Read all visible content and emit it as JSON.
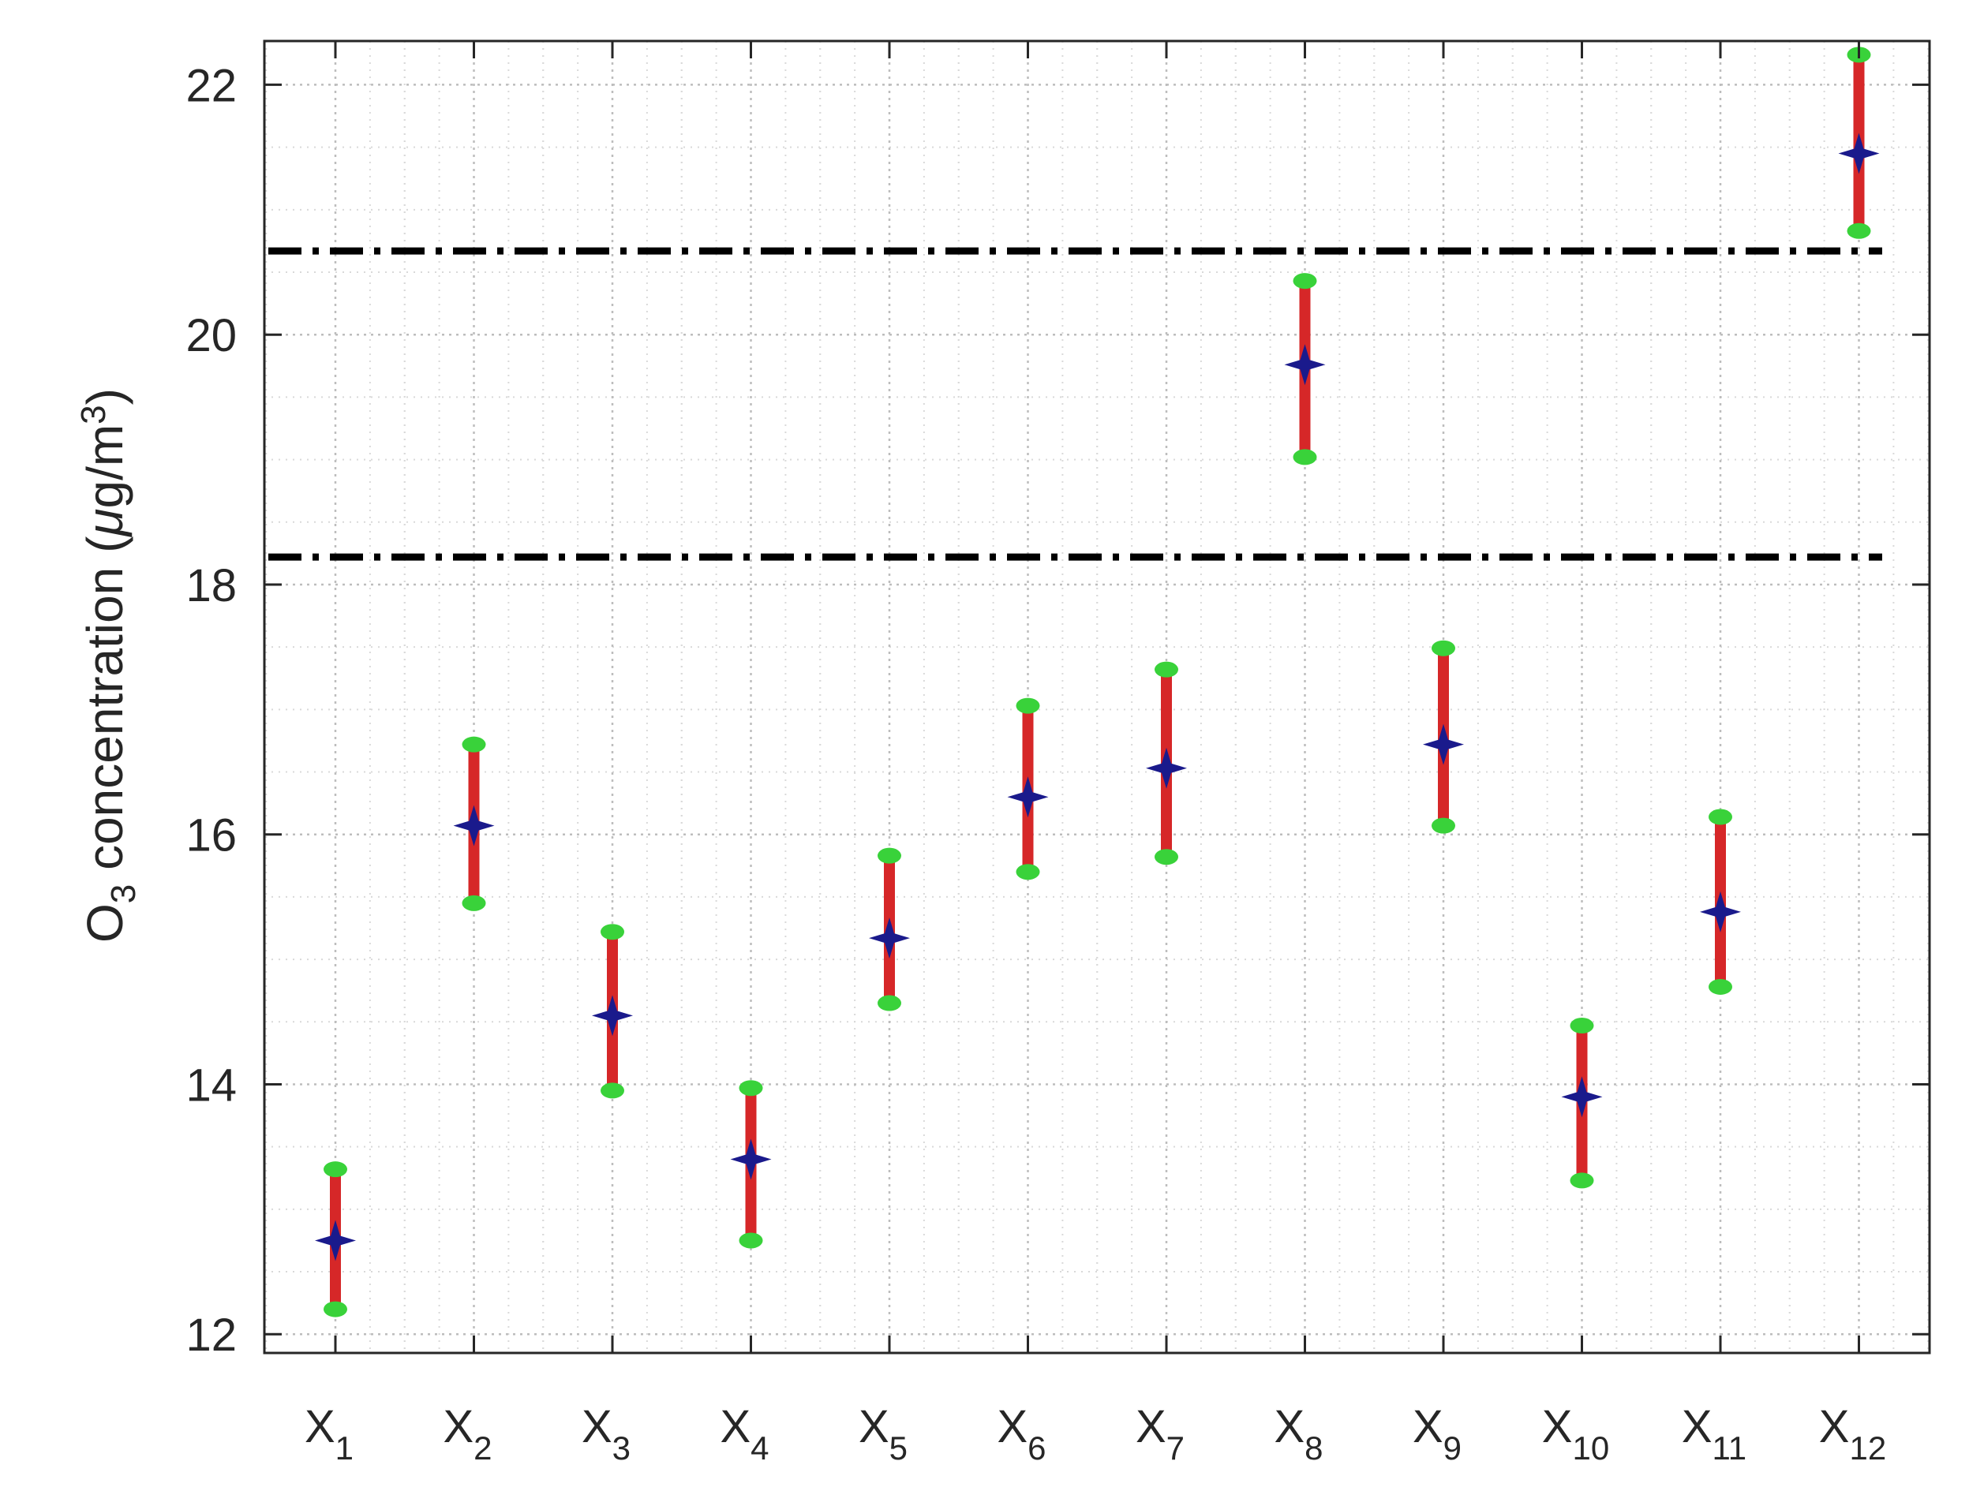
{
  "chart_data": {
    "type": "scatter",
    "title": "",
    "xlabel": "",
    "ylabel": {
      "prefix": "O",
      "prefix_sub": "3",
      "main": " concentration (",
      "mu": "μ",
      "unit": "g/m",
      "unit_sup": "3",
      "close": ")"
    },
    "categories": [
      {
        "base": "X",
        "sub": "1"
      },
      {
        "base": "X",
        "sub": "2"
      },
      {
        "base": "X",
        "sub": "3"
      },
      {
        "base": "X",
        "sub": "4"
      },
      {
        "base": "X",
        "sub": "5"
      },
      {
        "base": "X",
        "sub": "6"
      },
      {
        "base": "X",
        "sub": "7"
      },
      {
        "base": "X",
        "sub": "8"
      },
      {
        "base": "X",
        "sub": "9"
      },
      {
        "base": "X",
        "sub": "10"
      },
      {
        "base": "X",
        "sub": "11"
      },
      {
        "base": "X",
        "sub": "12"
      }
    ],
    "series": [
      {
        "center": [
          12.75,
          16.07,
          14.55,
          13.4,
          15.17,
          16.3,
          16.53,
          19.76,
          16.72,
          13.9,
          15.38,
          21.45
        ],
        "lower": [
          12.2,
          15.45,
          13.95,
          12.75,
          14.65,
          15.7,
          15.82,
          19.02,
          16.07,
          13.23,
          14.78,
          20.83
        ],
        "upper": [
          13.32,
          16.72,
          15.22,
          13.97,
          15.83,
          17.03,
          17.32,
          20.43,
          17.49,
          14.47,
          16.14,
          22.24
        ]
      }
    ],
    "reference_lines": [
      20.67,
      18.22
    ],
    "ylim": [
      11.85,
      22.35
    ],
    "yticks": [
      "12",
      "14",
      "16",
      "18",
      "20",
      "22"
    ],
    "ytick_values": [
      12,
      14,
      16,
      18,
      20,
      22
    ],
    "grid": true,
    "minor_grid": true,
    "colors": {
      "errorbar": "#d62728",
      "endpoint": "#39d23a",
      "center_marker": "#1a1a8c",
      "reference_line": "#000000",
      "axis": "#262626",
      "grid_major": "#bdbdbd",
      "grid_minor": "#d9d9d9"
    }
  }
}
